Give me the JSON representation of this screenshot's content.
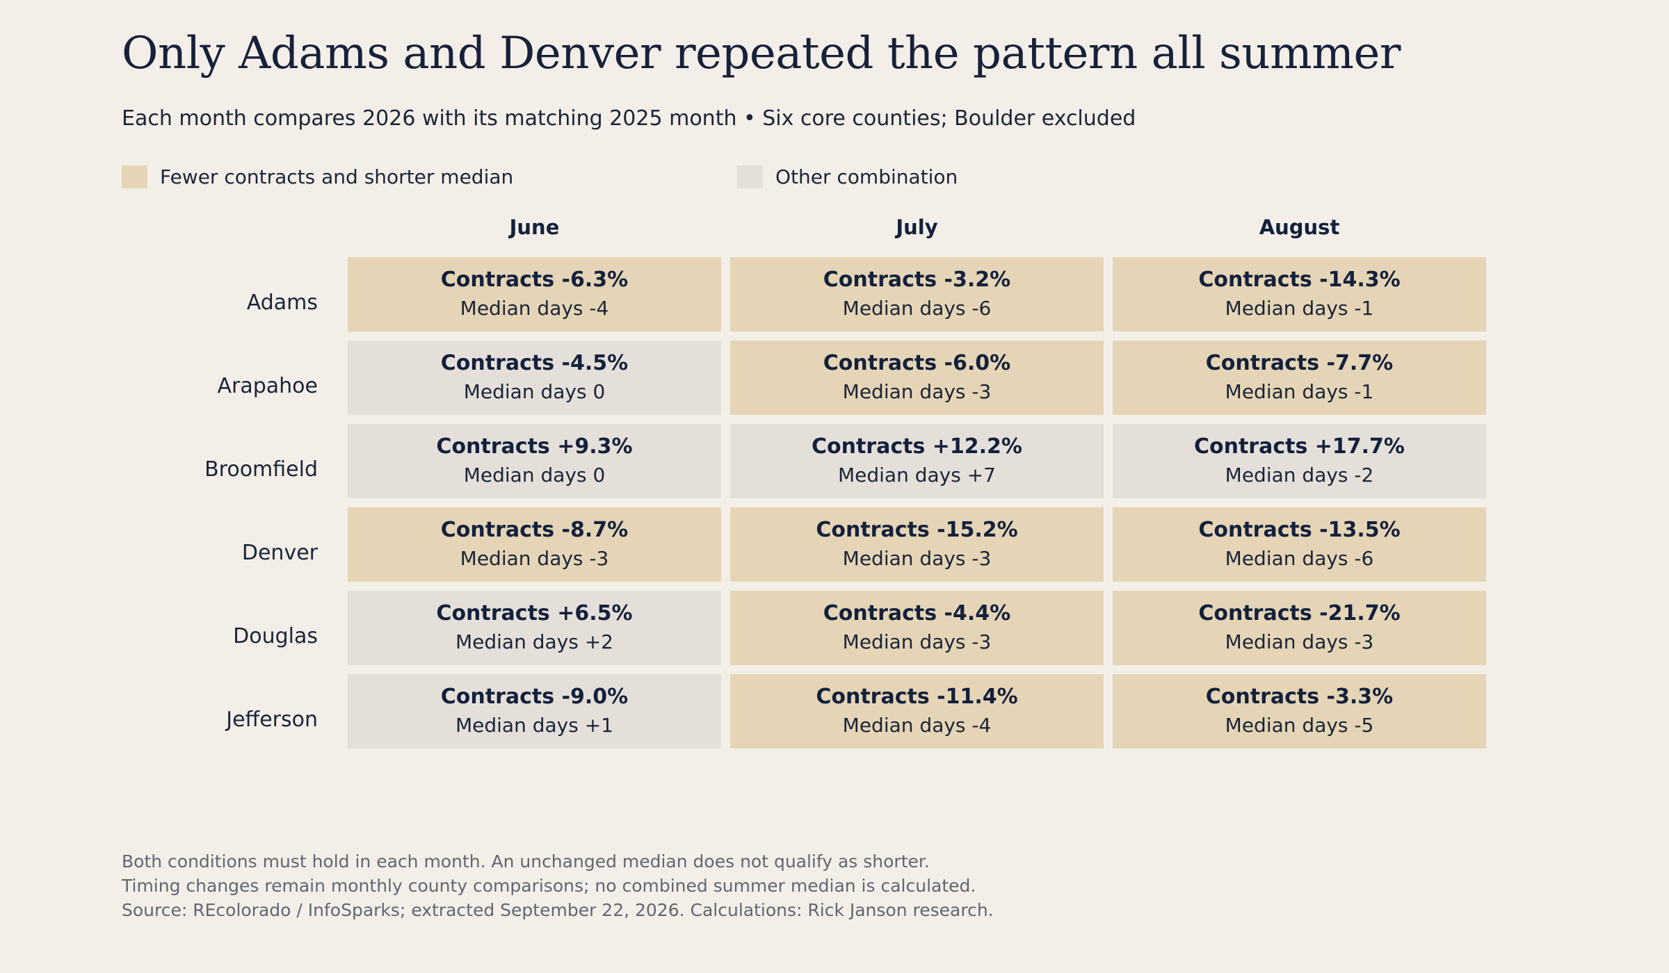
{
  "title": "Only Adams and Denver repeated the pattern all summer",
  "subtitle": "Each month compares 2026 with its matching 2025 month • Six core counties; Boulder excluded",
  "legend": [
    {
      "key": "fewer",
      "label": "Fewer contracts and shorter median",
      "color": "#e5d5b6"
    },
    {
      "key": "other",
      "label": "Other combination",
      "color": "#e4e0d9"
    }
  ],
  "colors": {
    "background": "#f3efe8",
    "fewer": "#e5d5b6",
    "other": "#e4e0d9",
    "text": "#14213d"
  },
  "chart_data": {
    "type": "table",
    "columns": [
      "June",
      "July",
      "August"
    ],
    "rows": [
      {
        "county": "Adams",
        "cells": [
          {
            "contracts": "Contracts -6.3%",
            "median": "Median days -4",
            "category": "fewer"
          },
          {
            "contracts": "Contracts -3.2%",
            "median": "Median days -6",
            "category": "fewer"
          },
          {
            "contracts": "Contracts -14.3%",
            "median": "Median days -1",
            "category": "fewer"
          }
        ]
      },
      {
        "county": "Arapahoe",
        "cells": [
          {
            "contracts": "Contracts -4.5%",
            "median": "Median days 0",
            "category": "other"
          },
          {
            "contracts": "Contracts -6.0%",
            "median": "Median days -3",
            "category": "fewer"
          },
          {
            "contracts": "Contracts -7.7%",
            "median": "Median days -1",
            "category": "fewer"
          }
        ]
      },
      {
        "county": "Broomfield",
        "cells": [
          {
            "contracts": "Contracts +9.3%",
            "median": "Median days 0",
            "category": "other"
          },
          {
            "contracts": "Contracts +12.2%",
            "median": "Median days +7",
            "category": "other"
          },
          {
            "contracts": "Contracts +17.7%",
            "median": "Median days -2",
            "category": "other"
          }
        ]
      },
      {
        "county": "Denver",
        "cells": [
          {
            "contracts": "Contracts -8.7%",
            "median": "Median days -3",
            "category": "fewer"
          },
          {
            "contracts": "Contracts -15.2%",
            "median": "Median days -3",
            "category": "fewer"
          },
          {
            "contracts": "Contracts -13.5%",
            "median": "Median days -6",
            "category": "fewer"
          }
        ]
      },
      {
        "county": "Douglas",
        "cells": [
          {
            "contracts": "Contracts +6.5%",
            "median": "Median days +2",
            "category": "other"
          },
          {
            "contracts": "Contracts -4.4%",
            "median": "Median days -3",
            "category": "fewer"
          },
          {
            "contracts": "Contracts -21.7%",
            "median": "Median days -3",
            "category": "fewer"
          }
        ]
      },
      {
        "county": "Jefferson",
        "cells": [
          {
            "contracts": "Contracts -9.0%",
            "median": "Median days +1",
            "category": "other"
          },
          {
            "contracts": "Contracts -11.4%",
            "median": "Median days -4",
            "category": "fewer"
          },
          {
            "contracts": "Contracts -3.3%",
            "median": "Median days -5",
            "category": "fewer"
          }
        ]
      }
    ]
  },
  "footnotes": [
    "Both conditions must hold in each month. An unchanged median does not qualify as shorter.",
    "Timing changes remain monthly county comparisons; no combined summer median is calculated.",
    "Source: REcolorado / InfoSparks; extracted September 22, 2026. Calculations: Rick Janson research."
  ]
}
